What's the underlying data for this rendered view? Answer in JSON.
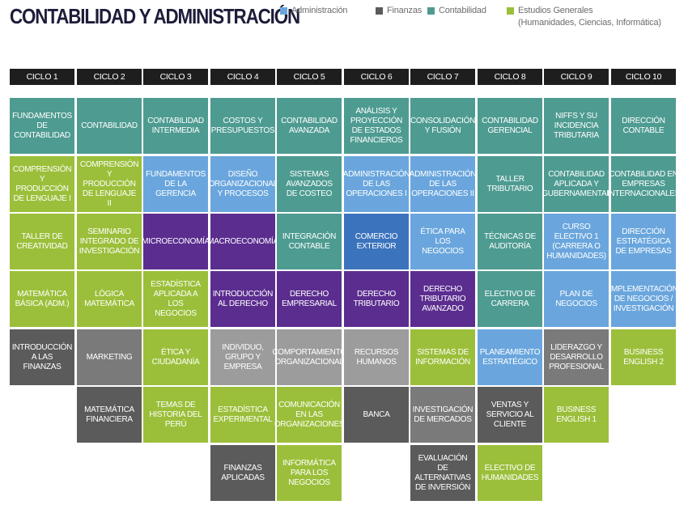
{
  "title": "CONTABILIDAD Y ADMINISTRACIÓN",
  "legend": [
    {
      "label": "Administración",
      "sub": "",
      "color": "#6aa6dd"
    },
    {
      "label": "Finanzas",
      "sub": "",
      "color": "#5b5b5b"
    },
    {
      "label": "Contabilidad",
      "sub": "",
      "color": "#4e9b91"
    },
    {
      "label": "Estudios Generales",
      "sub": "(Humanidades, Ciencias, Informática)",
      "color": "#9bbf3a"
    }
  ],
  "cycles": [
    "CICLO 1",
    "CICLO 2",
    "CICLO 3",
    "CICLO 4",
    "CICLO 5",
    "CICLO 6",
    "CICLO 7",
    "CICLO 8",
    "CICLO 9",
    "CICLO 10"
  ],
  "courses": [
    {
      "id": "c1-1",
      "text": "Fundamentos de contabilidad",
      "color": "con"
    },
    {
      "id": "c1-2",
      "text": "Comprensión y producción de lenguaje I",
      "color": "gen"
    },
    {
      "id": "c1-3",
      "text": "Taller de creatividad",
      "color": "gen"
    },
    {
      "id": "c1-4",
      "text": "Matemática básica (Adm.)",
      "color": "gen"
    },
    {
      "id": "c1-5",
      "text": "Introducción a las finanzas",
      "color": "fin"
    },
    {
      "id": "c2-1",
      "text": "Contabilidad",
      "color": "con"
    },
    {
      "id": "c2-2",
      "text": "Comprensión y producción de lenguaje II",
      "color": "gen"
    },
    {
      "id": "c2-3",
      "text": "Seminario integrado de investigación",
      "color": "gen"
    },
    {
      "id": "c2-4",
      "text": "Lógica matemática",
      "color": "gen"
    },
    {
      "id": "c2-5",
      "text": "Marketing",
      "color": "fin2"
    },
    {
      "id": "c2-6",
      "text": "Matemática financiera",
      "color": "fin"
    },
    {
      "id": "c3-1",
      "text": "Contabilidad intermedia",
      "color": "con"
    },
    {
      "id": "c3-2",
      "text": "Fundamentos de la gerencia",
      "color": "adm"
    },
    {
      "id": "c3-3",
      "text": "Microeconomía",
      "color": "pur"
    },
    {
      "id": "c3-4",
      "text": "Estadística aplicada a los negocios",
      "color": "gen"
    },
    {
      "id": "c3-5",
      "text": "Ética y ciudadanía",
      "color": "gen"
    },
    {
      "id": "c3-6",
      "text": "Temas de historia del Perú",
      "color": "gen"
    },
    {
      "id": "c4-1",
      "text": "Costos y presupuestos",
      "color": "con"
    },
    {
      "id": "c4-2",
      "text": "Diseño organizacional y procesos",
      "color": "adm"
    },
    {
      "id": "c4-3",
      "text": "Macroeconomía",
      "color": "pur"
    },
    {
      "id": "c4-4",
      "text": "Introducción al derecho",
      "color": "pur"
    },
    {
      "id": "c4-5",
      "text": "Individuo, grupo y empresa",
      "color": "fin3"
    },
    {
      "id": "c4-6",
      "text": "Estadística experimental",
      "color": "gen"
    },
    {
      "id": "c4-7",
      "text": "Finanzas aplicadas",
      "color": "fin"
    },
    {
      "id": "c5-1",
      "text": "Contabilidad avanzada",
      "color": "con"
    },
    {
      "id": "c5-2",
      "text": "Sistemas avanzados de costeo",
      "color": "con"
    },
    {
      "id": "c5-3",
      "text": "Integración contable",
      "color": "con"
    },
    {
      "id": "c5-4",
      "text": "Derecho empresarial",
      "color": "pur"
    },
    {
      "id": "c5-5",
      "text": "Comportamiento organizacional",
      "color": "fin3"
    },
    {
      "id": "c5-6",
      "text": "Comunicación en las organizaciones",
      "color": "gen"
    },
    {
      "id": "c5-7",
      "text": "Informática para los negocios",
      "color": "gen"
    },
    {
      "id": "c6-1",
      "text": "Análisis y proyección de estados financieros",
      "color": "con"
    },
    {
      "id": "c6-2",
      "text": "Administración de las operaciones I",
      "color": "adm"
    },
    {
      "id": "c6-3",
      "text": "Comercio exterior",
      "color": "adm2"
    },
    {
      "id": "c6-4",
      "text": "Derecho tributario",
      "color": "pur"
    },
    {
      "id": "c6-5",
      "text": "Recursos humanos",
      "color": "fin3"
    },
    {
      "id": "c6-6",
      "text": "Banca",
      "color": "fin"
    },
    {
      "id": "c7-1",
      "text": "Consolidación y fusión",
      "color": "con"
    },
    {
      "id": "c7-2",
      "text": "Administración de las operaciones II",
      "color": "adm"
    },
    {
      "id": "c7-3",
      "text": "Ética para los negocios",
      "color": "adm"
    },
    {
      "id": "c7-4",
      "text": "Derecho tributario avanzado",
      "color": "pur"
    },
    {
      "id": "c7-5",
      "text": "Sistemas de información",
      "color": "gen"
    },
    {
      "id": "c7-6",
      "text": "Investigación de mercados",
      "color": "fin2"
    },
    {
      "id": "c7-7",
      "text": "Evaluación de alternativas de inversión",
      "color": "fin"
    },
    {
      "id": "c8-1",
      "text": "Contabilidad gerencial",
      "color": "con"
    },
    {
      "id": "c8-2",
      "text": "Taller tributario",
      "color": "con"
    },
    {
      "id": "c8-3",
      "text": "Técnicas de auditoría",
      "color": "con"
    },
    {
      "id": "c8-4",
      "text": "Electivo de carrera",
      "color": "con"
    },
    {
      "id": "c8-5",
      "text": "Planeamiento estratégico",
      "color": "adm"
    },
    {
      "id": "c8-6",
      "text": "Ventas y servicio al cliente",
      "color": "fin"
    },
    {
      "id": "c8-7",
      "text": "Electivo de humanidades",
      "color": "gen"
    },
    {
      "id": "c9-1",
      "text": "NIFFS y su incidencia tributaria",
      "color": "con"
    },
    {
      "id": "c9-2",
      "text": "Contabilidad aplicada y gubernamental",
      "color": "con"
    },
    {
      "id": "c9-3",
      "text": "Curso electivo 1 (carrera o humanidades)",
      "color": "adm"
    },
    {
      "id": "c9-4",
      "text": "Plan de negocios",
      "color": "adm"
    },
    {
      "id": "c9-5",
      "text": "Liderazgo y desarrollo profesional",
      "color": "fin2"
    },
    {
      "id": "c9-6",
      "text": "Business English 1",
      "color": "gen"
    },
    {
      "id": "c10-1",
      "text": "Dirección contable",
      "color": "con"
    },
    {
      "id": "c10-2",
      "text": "Contabilidad en empresas internacionales",
      "color": "con"
    },
    {
      "id": "c10-3",
      "text": "Dirección estratégica de empresas",
      "color": "adm"
    },
    {
      "id": "c10-4",
      "text": "Implementación de negocios / investigación",
      "color": "adm"
    },
    {
      "id": "c10-5",
      "text": "Business English 2",
      "color": "gen"
    }
  ]
}
